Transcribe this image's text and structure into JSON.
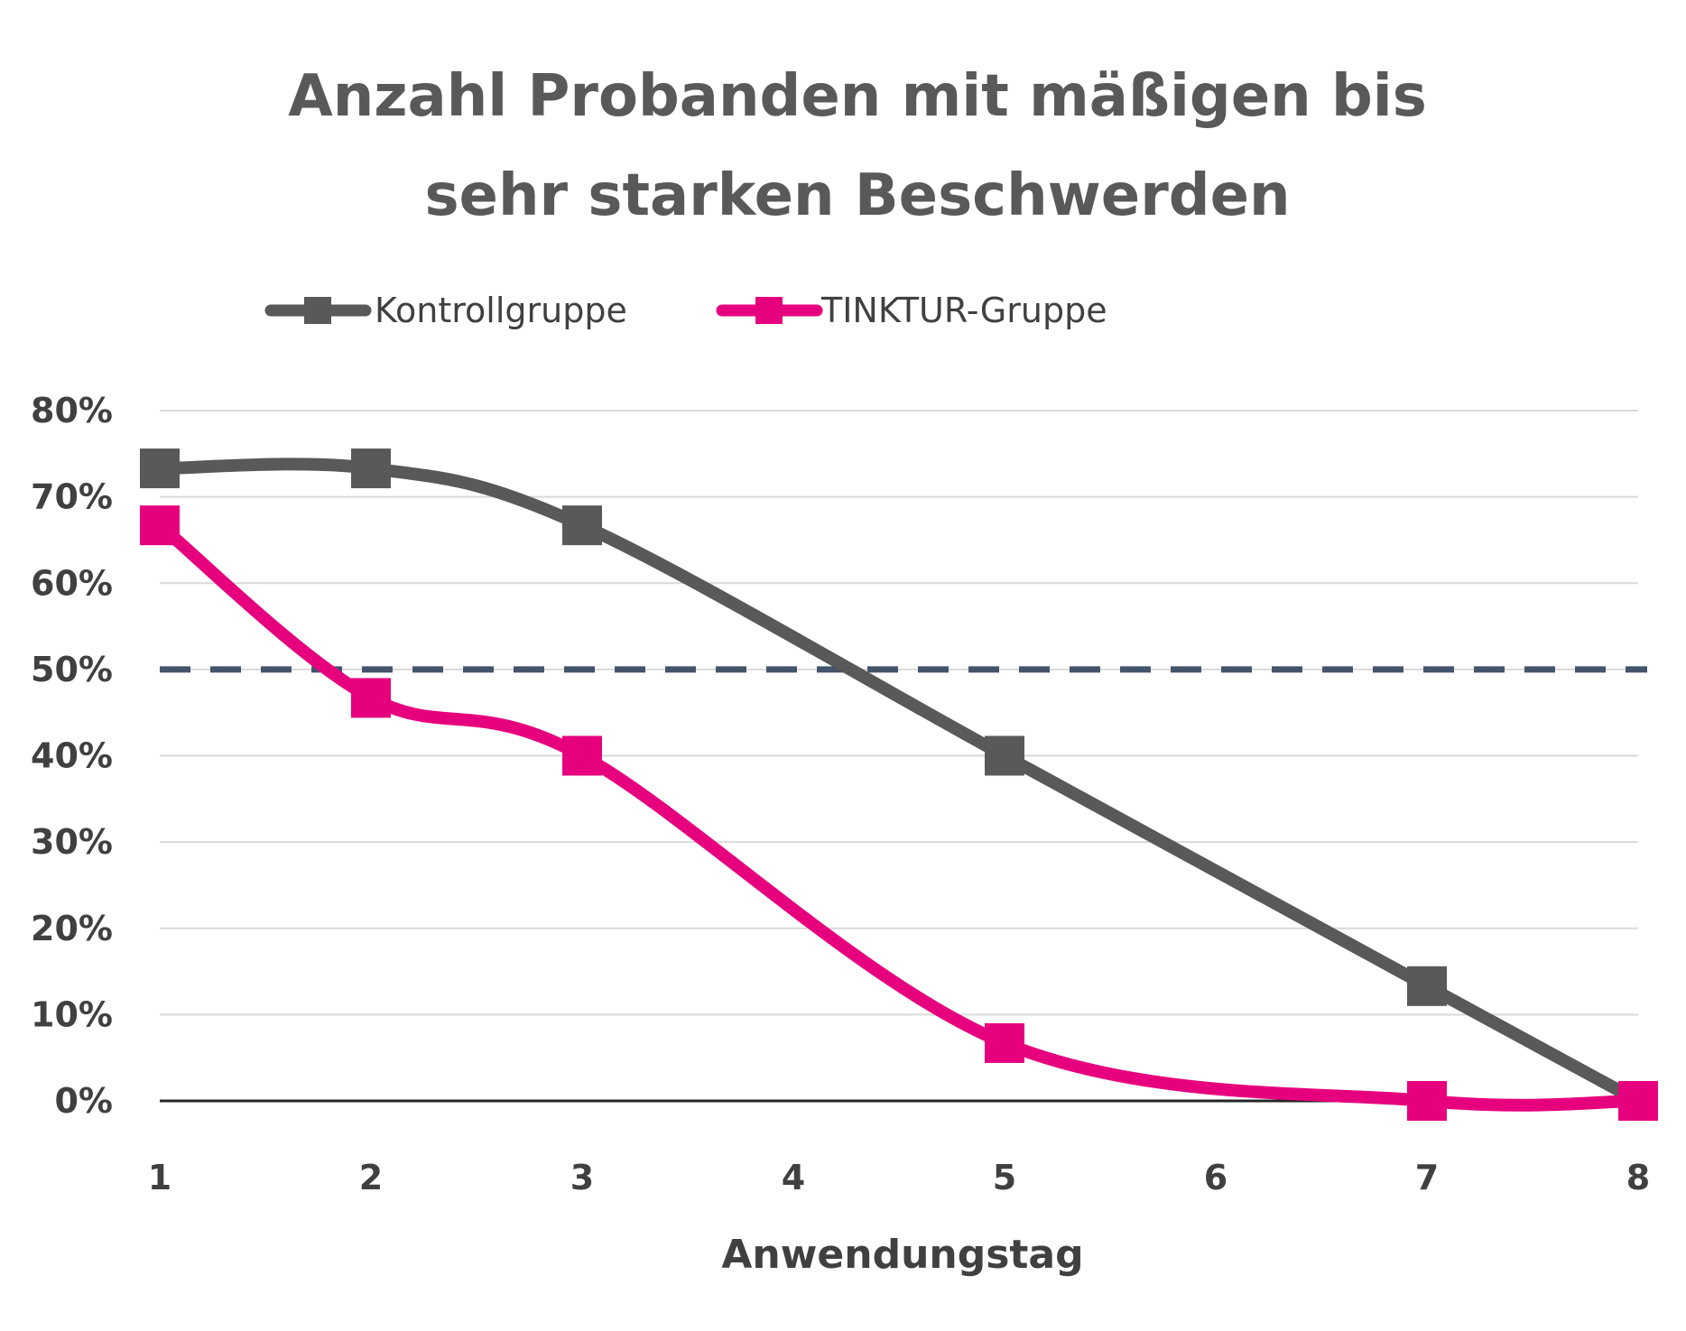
{
  "chart_data": {
    "type": "line",
    "title_lines": [
      "Anzahl Probanden mit mäßigen bis",
      "sehr starken Beschwerden"
    ],
    "xlabel": "Anwendungstag",
    "ylabel": "",
    "x": [
      1,
      2,
      3,
      5,
      7,
      8
    ],
    "x_ticks": [
      "1",
      "2",
      "3",
      "4",
      "5",
      "6",
      "7",
      "8"
    ],
    "y_ticks": [
      "0%",
      "10%",
      "20%",
      "30%",
      "40%",
      "50%",
      "60%",
      "70%",
      "80%"
    ],
    "xlim": [
      1,
      8
    ],
    "ylim": [
      0,
      80
    ],
    "grid": true,
    "legend_position": "top",
    "reference_line": {
      "y": 50,
      "color": "#44546a",
      "style": "dashed"
    },
    "series": [
      {
        "name": "Kontrollgruppe",
        "color": "#595959",
        "values": [
          73.3,
          73.3,
          66.7,
          40,
          13.3,
          0
        ]
      },
      {
        "name": "TINKTUR-Gruppe",
        "color": "#e6007e",
        "values": [
          66.7,
          46.7,
          40,
          6.7,
          0,
          0
        ]
      }
    ]
  }
}
